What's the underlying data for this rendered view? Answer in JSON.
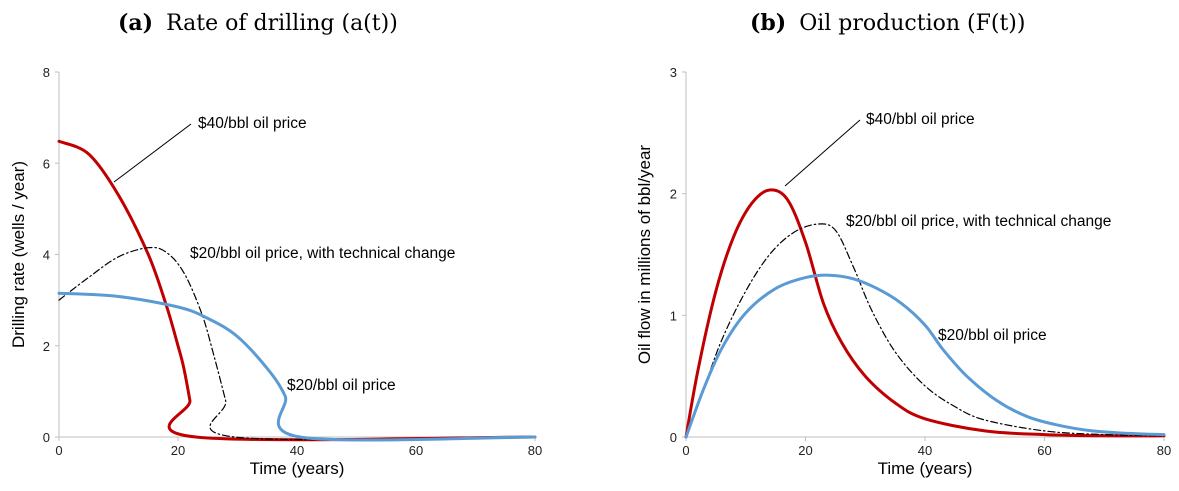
{
  "chart_data": [
    {
      "type": "line",
      "title_tag": "(a)",
      "title": "Rate of drilling (a(t))",
      "xlabel": "Time (years)",
      "ylabel": "Drilling rate (wells / year)",
      "xlim": [
        0,
        80
      ],
      "ylim": [
        0,
        8
      ],
      "xticks": [
        "0",
        "20",
        "40",
        "60",
        "80"
      ],
      "yticks": [
        "0",
        "2",
        "4",
        "6",
        "8"
      ],
      "grid": false,
      "series": [
        {
          "name": "$40/bbl oil price",
          "color": "#c00000",
          "style": "solid",
          "points": [
            [
              0,
              6.48
            ],
            [
              5,
              6.2
            ],
            [
              10,
              5.3
            ],
            [
              15,
              4.0
            ],
            [
              18,
              2.9
            ],
            [
              20,
              2.0
            ],
            [
              21,
              1.5
            ],
            [
              22,
              0.8
            ],
            [
              23,
              0
            ],
            [
              80,
              0
            ]
          ]
        },
        {
          "name": "$20/bbl oil price, with technical change",
          "color": "#000000",
          "style": "dashdot",
          "points": [
            [
              0,
              3.0
            ],
            [
              5,
              3.5
            ],
            [
              10,
              3.95
            ],
            [
              15,
              4.15
            ],
            [
              18,
              4.05
            ],
            [
              21,
              3.6
            ],
            [
              24,
              2.7
            ],
            [
              26,
              1.8
            ],
            [
              28,
              0.8
            ],
            [
              29.5,
              0
            ],
            [
              80,
              0
            ]
          ]
        },
        {
          "name": "$20/bbl oil price",
          "color": "#5b9bd5",
          "style": "solid",
          "points": [
            [
              0,
              3.15
            ],
            [
              10,
              3.08
            ],
            [
              20,
              2.85
            ],
            [
              25,
              2.6
            ],
            [
              30,
              2.2
            ],
            [
              35,
              1.5
            ],
            [
              38,
              0.9
            ],
            [
              40.5,
              0
            ],
            [
              80,
              0
            ]
          ]
        }
      ],
      "annotations": [
        "$40/bbl oil price",
        "$20/bbl oil price, with technical change",
        "$20/bbl oil price"
      ]
    },
    {
      "type": "line",
      "title_tag": "(b)",
      "title": "Oil production (F(t))",
      "xlabel": "Time (years)",
      "ylabel": "Oil flow in millions of bbl/year",
      "xlim": [
        0,
        80
      ],
      "ylim": [
        0,
        3
      ],
      "xticks": [
        "0",
        "20",
        "40",
        "60",
        "80"
      ],
      "yticks": [
        "0",
        "1",
        "2",
        "3"
      ],
      "grid": false,
      "series": [
        {
          "name": "$40/bbl oil price",
          "color": "#c00000",
          "style": "solid",
          "points": [
            [
              0,
              0
            ],
            [
              2,
              0.55
            ],
            [
              5,
              1.2
            ],
            [
              8,
              1.65
            ],
            [
              11,
              1.92
            ],
            [
              14,
              2.03
            ],
            [
              17,
              1.95
            ],
            [
              20,
              1.6
            ],
            [
              23,
              1.1
            ],
            [
              26,
              0.78
            ],
            [
              30,
              0.5
            ],
            [
              35,
              0.28
            ],
            [
              40,
              0.15
            ],
            [
              50,
              0.05
            ],
            [
              60,
              0.02
            ],
            [
              70,
              0.01
            ],
            [
              80,
              0.01
            ]
          ]
        },
        {
          "name": "$20/bbl oil price, with technical change",
          "color": "#000000",
          "style": "dashdot",
          "points": [
            [
              0,
              0
            ],
            [
              3,
              0.4
            ],
            [
              6,
              0.8
            ],
            [
              10,
              1.2
            ],
            [
              14,
              1.5
            ],
            [
              18,
              1.68
            ],
            [
              22,
              1.75
            ],
            [
              25,
              1.7
            ],
            [
              28,
              1.4
            ],
            [
              31,
              1.05
            ],
            [
              35,
              0.7
            ],
            [
              40,
              0.42
            ],
            [
              45,
              0.25
            ],
            [
              50,
              0.14
            ],
            [
              60,
              0.05
            ],
            [
              70,
              0.02
            ],
            [
              80,
              0.01
            ]
          ]
        },
        {
          "name": "$20/bbl oil price",
          "color": "#5b9bd5",
          "style": "solid",
          "points": [
            [
              0,
              0
            ],
            [
              3,
              0.4
            ],
            [
              6,
              0.73
            ],
            [
              10,
              1.02
            ],
            [
              15,
              1.22
            ],
            [
              20,
              1.31
            ],
            [
              24,
              1.33
            ],
            [
              28,
              1.3
            ],
            [
              32,
              1.22
            ],
            [
              36,
              1.1
            ],
            [
              40,
              0.92
            ],
            [
              43,
              0.72
            ],
            [
              47,
              0.5
            ],
            [
              52,
              0.3
            ],
            [
              57,
              0.17
            ],
            [
              62,
              0.1
            ],
            [
              68,
              0.05
            ],
            [
              74,
              0.03
            ],
            [
              80,
              0.02
            ]
          ]
        }
      ],
      "annotations": [
        "$40/bbl oil price",
        "$20/bbl oil price, with technical change",
        "$20/bbl oil price"
      ]
    }
  ]
}
